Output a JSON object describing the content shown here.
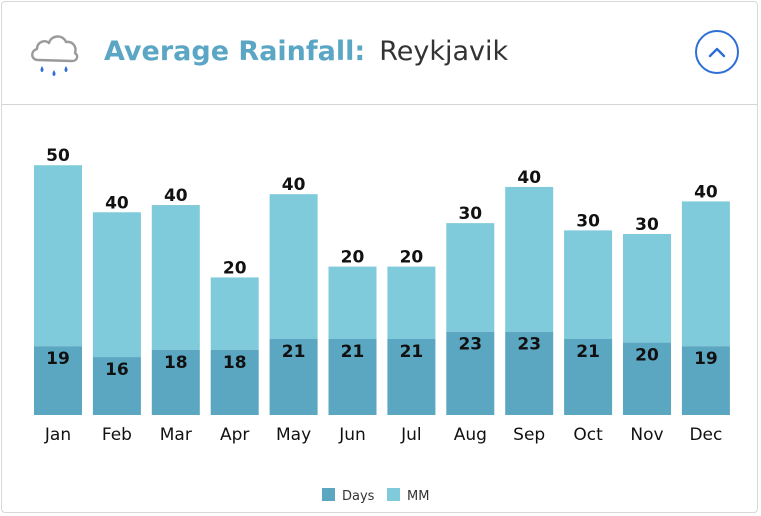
{
  "header": {
    "title_prefix": "Average Rainfall:",
    "city": "Reykjavik",
    "icon": "rain-cloud-icon",
    "collapse_icon": "chevron-up-icon"
  },
  "colors": {
    "days": "#5ba6c0",
    "mm": "#7fcadb",
    "accent": "#5aa6c4",
    "button": "#2d6fd6"
  },
  "chart_data": {
    "type": "bar",
    "stacked": true,
    "title": "Average Rainfall: Reykjavik",
    "categories": [
      "Jan",
      "Feb",
      "Mar",
      "Apr",
      "May",
      "Jun",
      "Jul",
      "Aug",
      "Sep",
      "Oct",
      "Nov",
      "Dec"
    ],
    "series": [
      {
        "name": "Days",
        "values": [
          19,
          16,
          18,
          18,
          21,
          21,
          21,
          23,
          23,
          21,
          20,
          19
        ]
      },
      {
        "name": "MM",
        "values": [
          50,
          40,
          40,
          20,
          40,
          20,
          20,
          30,
          40,
          30,
          30,
          40
        ]
      }
    ],
    "legend": [
      "Days",
      "MM"
    ],
    "legend_position": "bottom-center",
    "grid": false
  }
}
